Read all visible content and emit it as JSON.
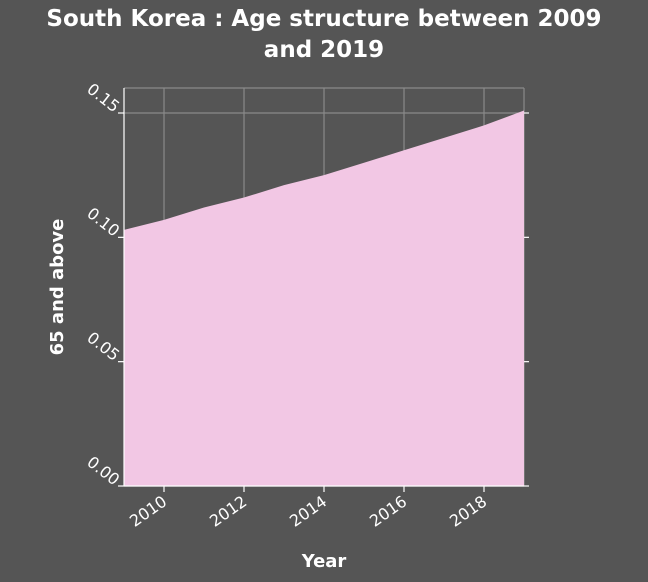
{
  "chart_data": {
    "type": "area",
    "title": [
      "South Korea : Age structure between 2009",
      "and 2019"
    ],
    "xlabel": "Year",
    "ylabel": "65 and above",
    "x": [
      2009,
      2010,
      2011,
      2012,
      2013,
      2014,
      2015,
      2016,
      2017,
      2018,
      2019
    ],
    "series": [
      {
        "values": [
          0.103,
          0.107,
          0.112,
          0.116,
          0.121,
          0.125,
          0.13,
          0.135,
          0.14,
          0.145,
          0.151
        ]
      }
    ],
    "xlim": [
      2009,
      2019
    ],
    "ylim": [
      0,
      0.15
    ],
    "xticks": [
      2010,
      2012,
      2014,
      2016,
      2018
    ],
    "xtick_labels": [
      "2010",
      "2012",
      "2014",
      "2016",
      "2018"
    ],
    "yticks": [
      0,
      0.05,
      0.1,
      0.15
    ],
    "ytick_labels": [
      "0.00",
      "0.05",
      "0.10",
      "0.15"
    ],
    "grid": true,
    "colors": {
      "background": "#555555",
      "fill": "#f2c7e4",
      "grid": "#8a8a8a",
      "axis": "#ffffff",
      "text": "#ffffff"
    }
  }
}
